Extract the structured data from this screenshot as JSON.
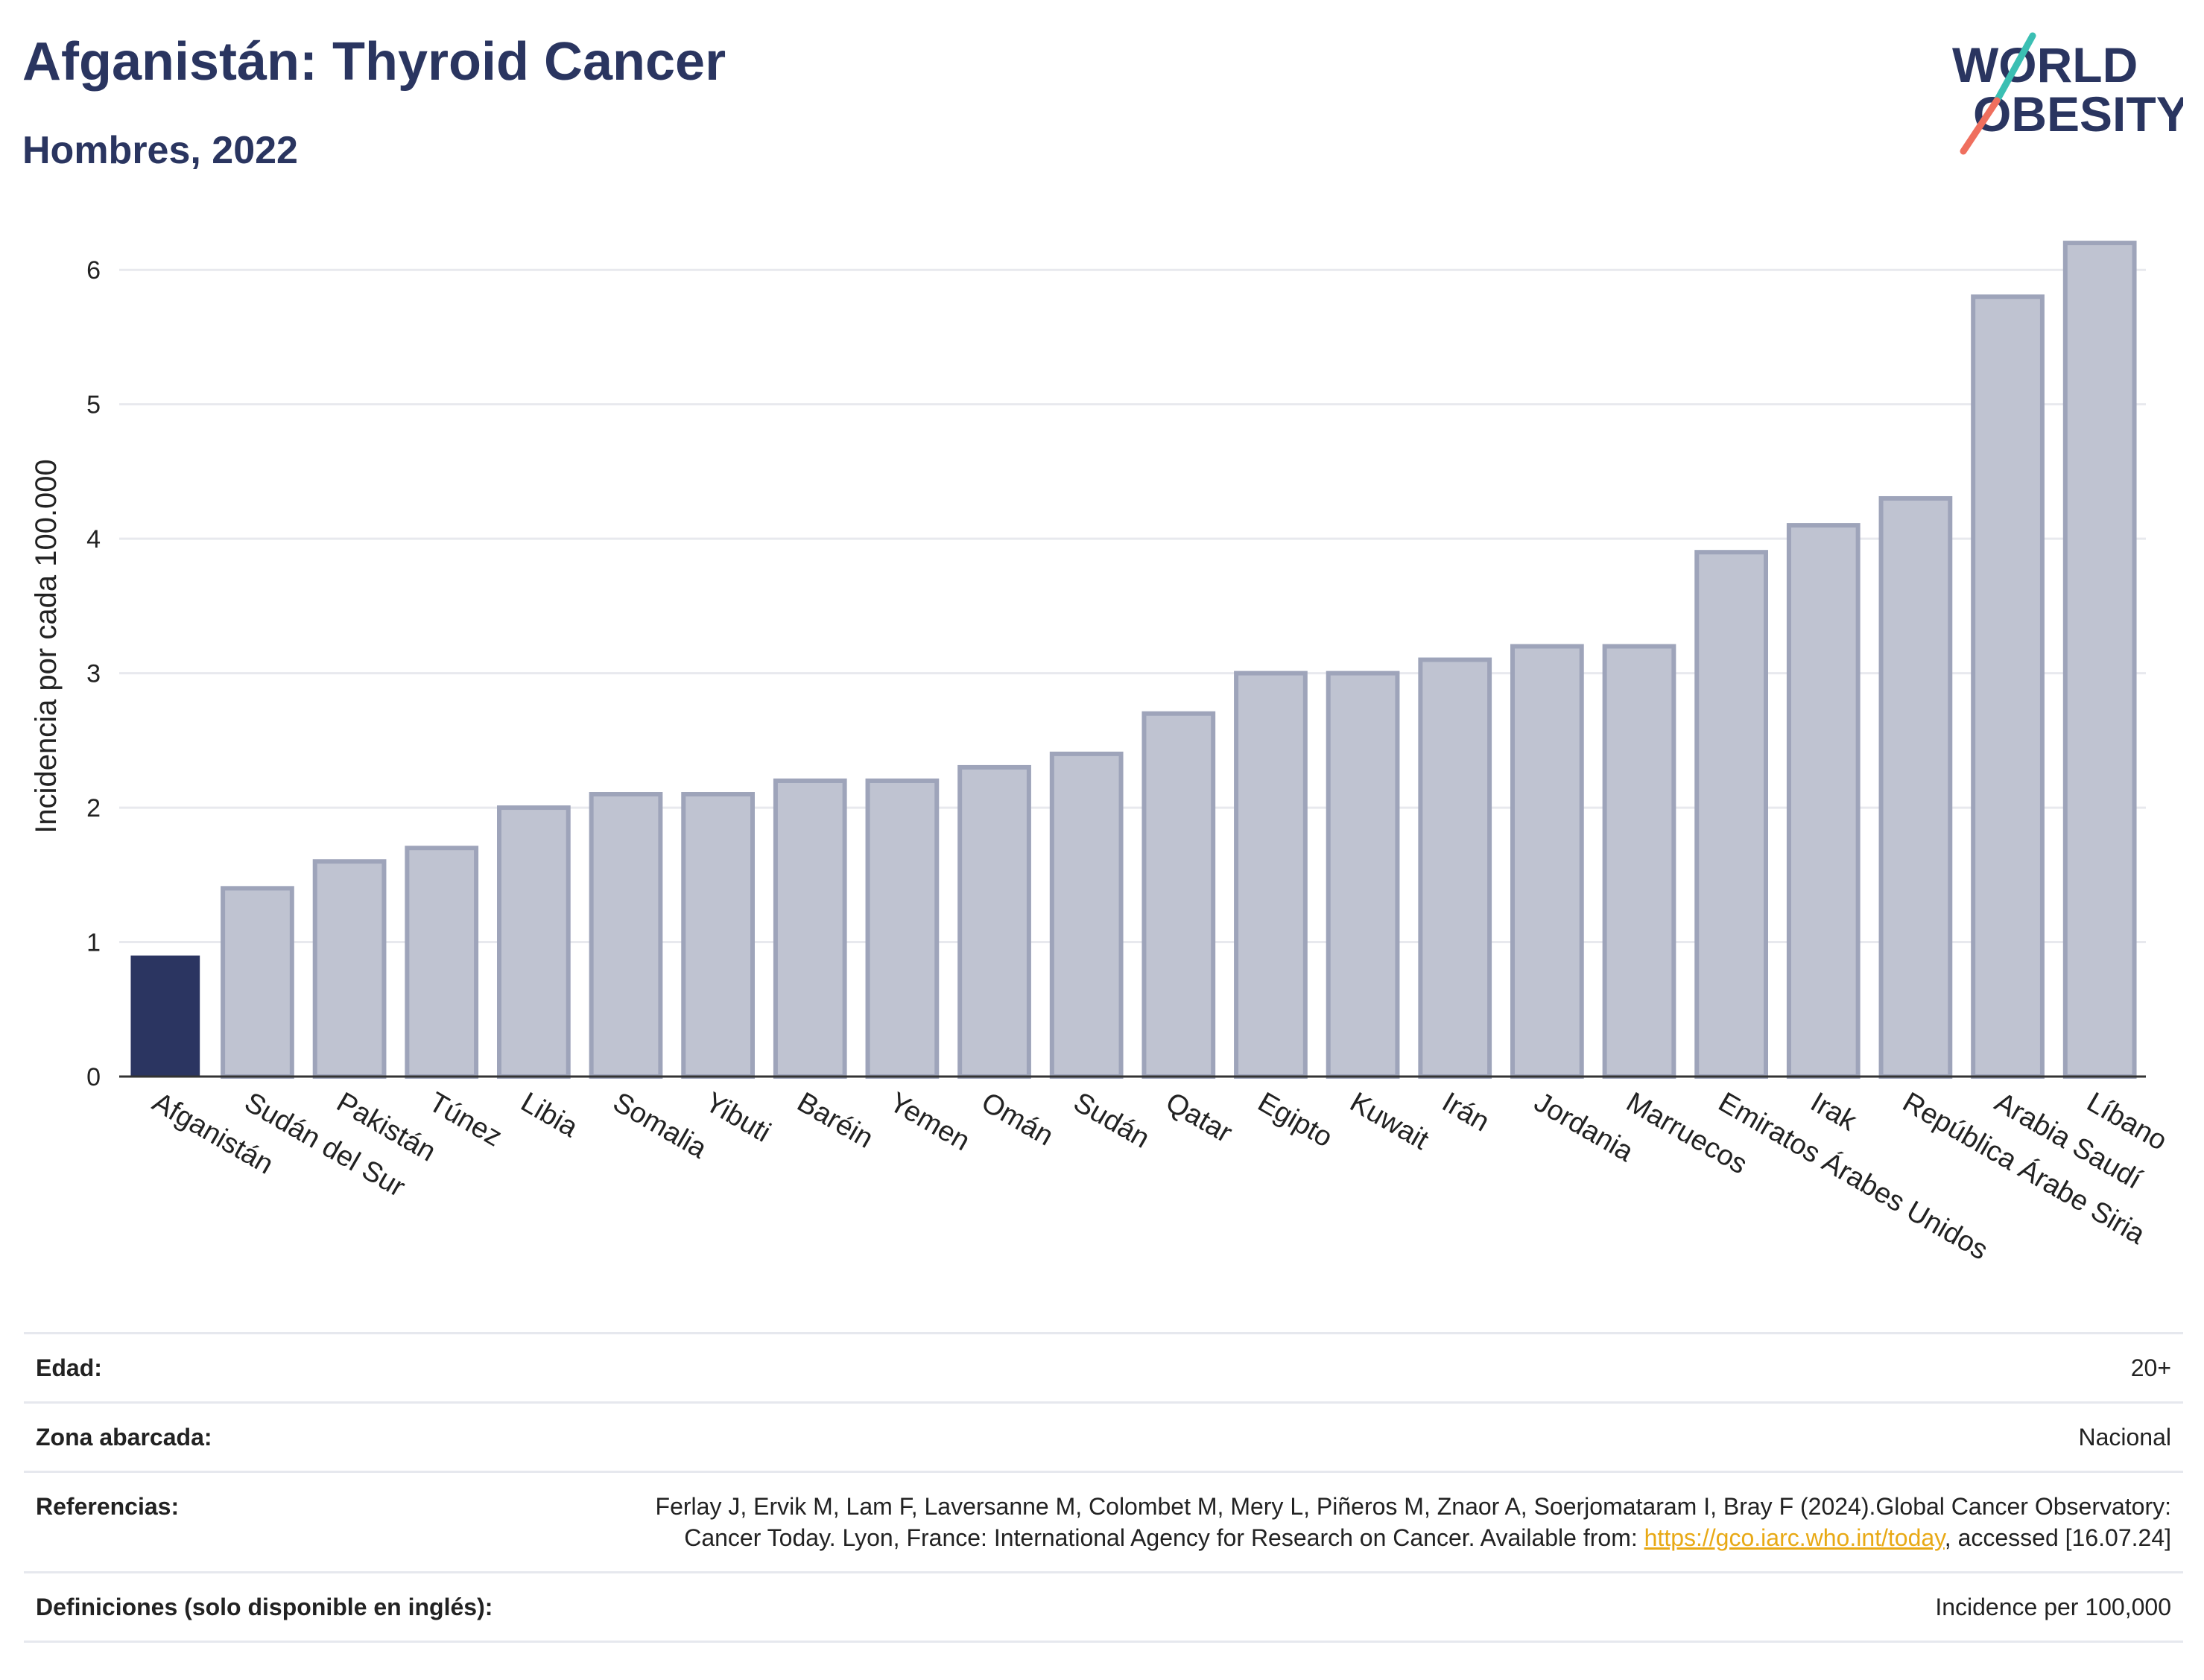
{
  "header": {
    "title": "Afganistán: Thyroid Cancer",
    "subtitle": "Hombres, 2022"
  },
  "logo": {
    "line1": "WORLD",
    "line2": "OBESITY"
  },
  "colors": {
    "highlight_bar": "#2b3561",
    "other_bar_fill": "#bfc3d1",
    "other_bar_stroke": "#9ea4ba",
    "grid": "#e8e9ee",
    "title": "#2a3560",
    "logo_teal": "#3bbfb3",
    "logo_coral": "#ef6f5e",
    "link": "#e8a915"
  },
  "chart_data": {
    "type": "bar",
    "title": "Afganistán: Thyroid Cancer",
    "subtitle": "Hombres, 2022",
    "xlabel": "",
    "ylabel": "Incidencia por cada 100.000",
    "ylim": [
      0,
      6.4
    ],
    "yticks": [
      0,
      1,
      2,
      3,
      4,
      5,
      6
    ],
    "grid": true,
    "highlight": "Afganistán",
    "categories": [
      "Afganistán",
      "Sudán del Sur",
      "Pakistán",
      "Túnez",
      "Libia",
      "Somalia",
      "Yibuti",
      "Baréin",
      "Yemen",
      "Omán",
      "Sudán",
      "Qatar",
      "Egipto",
      "Kuwait",
      "Irán",
      "Jordania",
      "Marruecos",
      "Emiratos Árabes Unidos",
      "Irak",
      "República Árabe Siria",
      "Arabia Saudí",
      "Líbano"
    ],
    "values": [
      0.9,
      1.4,
      1.6,
      1.7,
      2.0,
      2.1,
      2.1,
      2.2,
      2.2,
      2.3,
      2.4,
      2.7,
      3.0,
      3.0,
      3.1,
      3.2,
      3.2,
      3.9,
      4.1,
      4.3,
      5.8,
      6.2
    ]
  },
  "footer": {
    "age_label": "Edad:",
    "age_value": "20+",
    "area_label": "Zona abarcada:",
    "area_value": "Nacional",
    "refs_label": "Referencias:",
    "refs_text_1": "Ferlay J, Ervik M, Lam F, Laversanne M, Colombet M, Mery L, Piñeros M, Znaor A, Soerjomataram I, Bray F (2024).Global Cancer Observatory: Cancer Today. Lyon, France: International Agency for Research on Cancer. Available from: ",
    "refs_link": "https://gco.iarc.who.int/today",
    "refs_text_2": ", accessed [16.07.24]",
    "defs_label": "Definiciones (solo disponible en inglés):",
    "defs_value": "Incidence per 100,000"
  }
}
